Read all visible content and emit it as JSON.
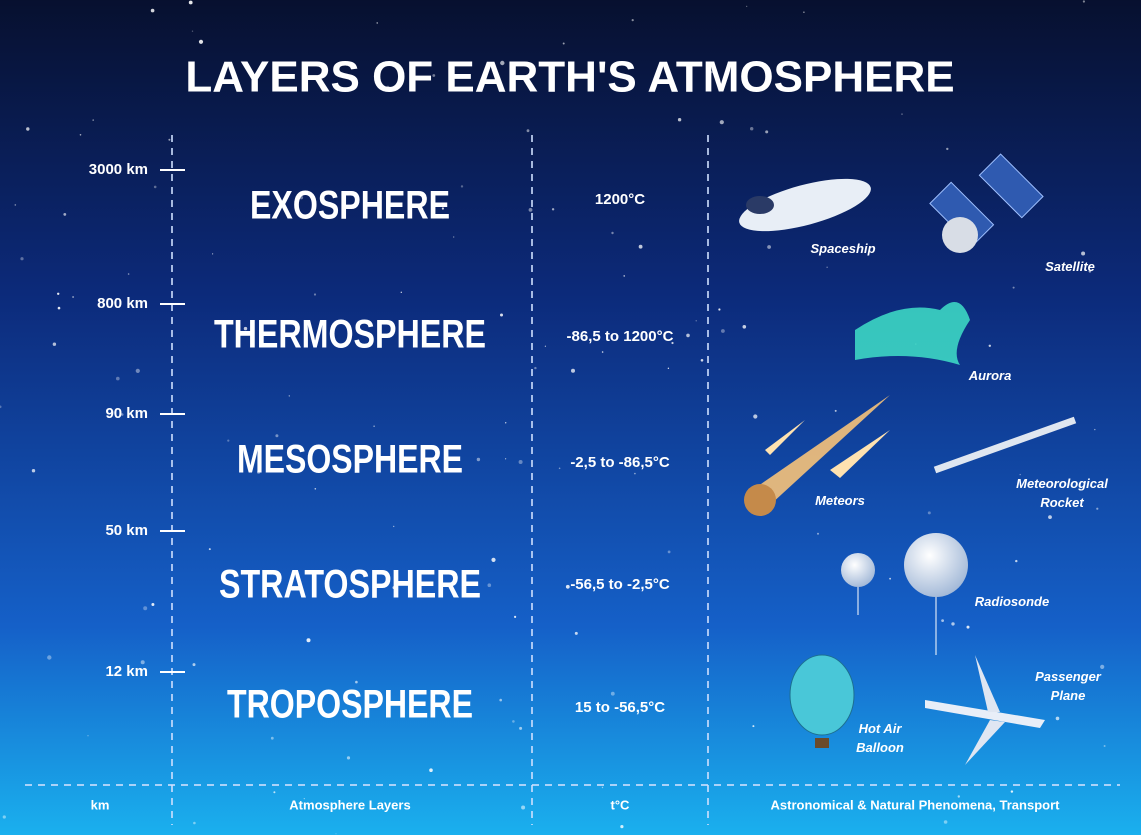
{
  "title": "LAYERS OF EARTH'S ATMOSPHERE",
  "scale": [
    "3000 km",
    "800 km",
    "90 km",
    "50 km",
    "12 km"
  ],
  "layers": [
    {
      "name": "EXOSPHERE",
      "temperature": "1200°C"
    },
    {
      "name": "THERMOSPHERE",
      "temperature": "-86,5 to 1200°C"
    },
    {
      "name": "MESOSPHERE",
      "temperature": "-2,5 to -86,5°C"
    },
    {
      "name": "STRATOSPHERE",
      "temperature": "-56,5 to -2,5°C"
    },
    {
      "name": "TROPOSPHERE",
      "temperature": "15 to -56,5°C"
    }
  ],
  "phenomena": [
    {
      "lines": [
        "Spaceship"
      ]
    },
    {
      "lines": [
        "Satellite"
      ]
    },
    {
      "lines": [
        "Aurora"
      ]
    },
    {
      "lines": [
        "Meteors"
      ]
    },
    {
      "lines": [
        "Meteorological",
        "Rocket"
      ]
    },
    {
      "lines": [
        "Radiosonde"
      ]
    },
    {
      "lines": [
        "Passenger",
        "Plane"
      ]
    },
    {
      "lines": [
        "Hot Air",
        "Balloon"
      ]
    }
  ],
  "footer": [
    "km",
    "Atmosphere Layers",
    "t°C",
    "Astronomical & Natural Phenomena, Transport"
  ]
}
